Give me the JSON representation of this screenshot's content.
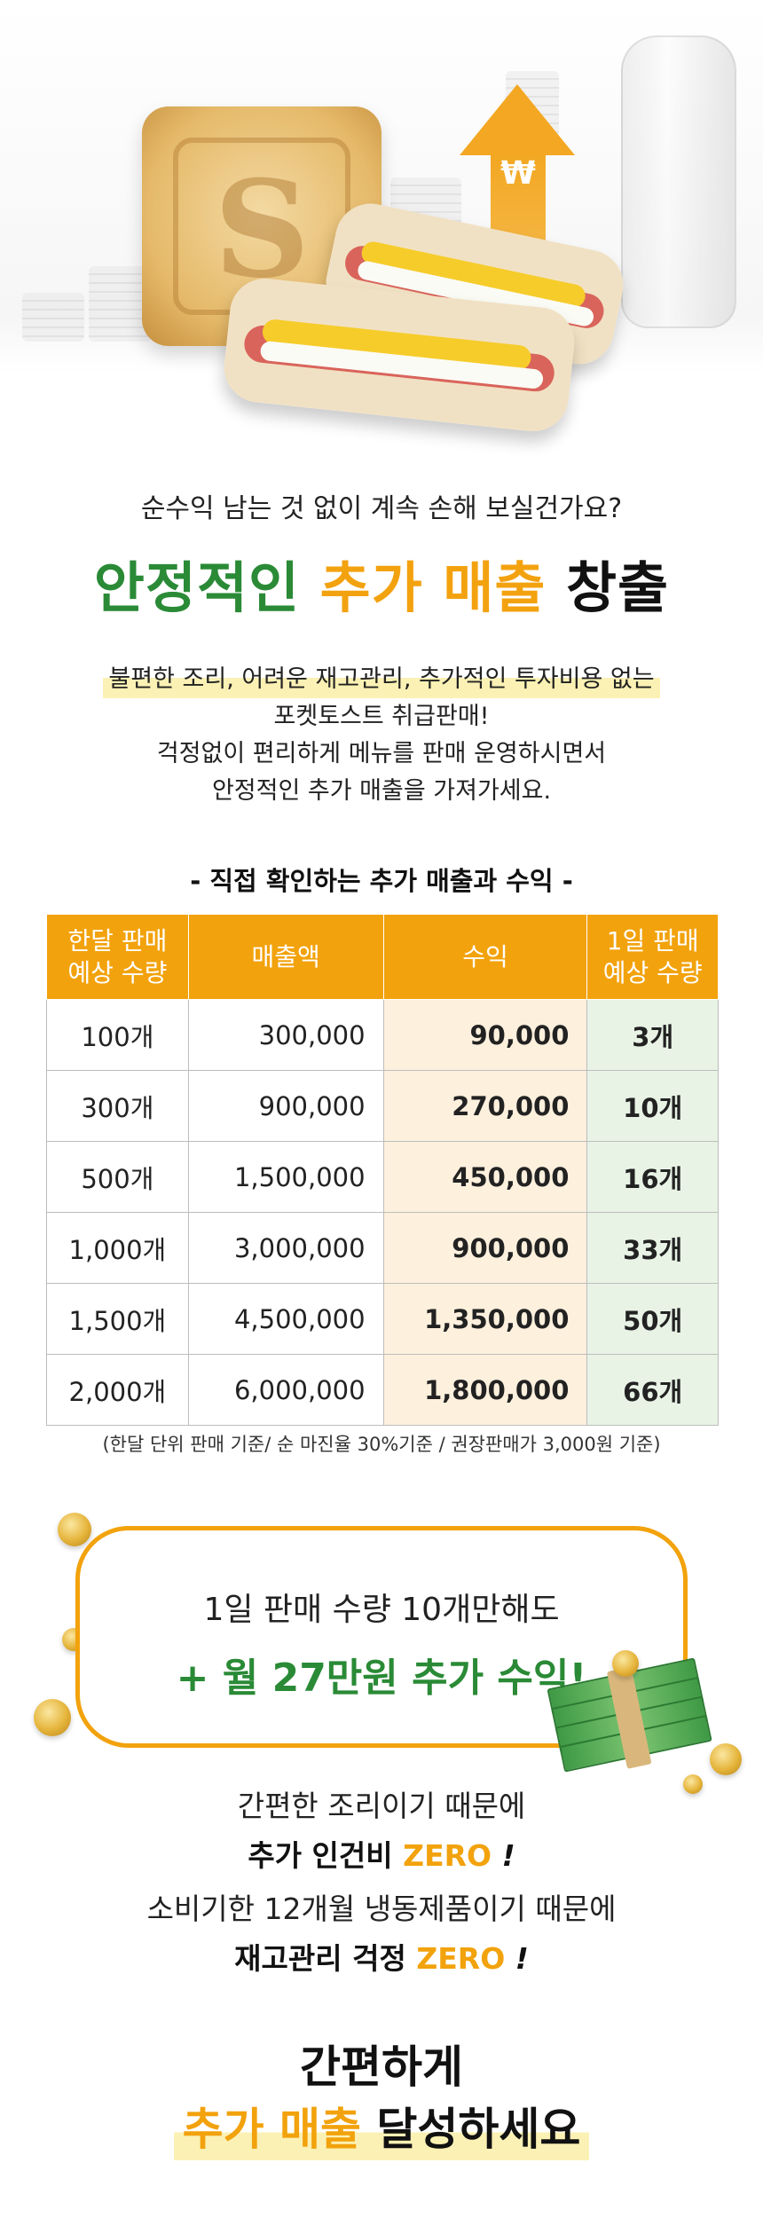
{
  "hero": {
    "won_symbol": "₩",
    "emboss_glyph": "S"
  },
  "headline": {
    "question": "순수익 남는 것 없이 계속 손해 보실건가요?",
    "part1": "안정적인",
    "part2": "추가 매출",
    "part3": "창출"
  },
  "intro": {
    "line1": "불편한 조리, 어려운 재고관리, 추가적인 투자비용 없는",
    "line2": "포켓토스트 취급판매!",
    "line3": "걱정없이 편리하게 메뉴를 판매 운영하시면서",
    "line4": "안정적인 추가 매출을 가져가세요."
  },
  "table": {
    "title": "- 직접 확인하는 추가 매출과 수익 -",
    "headers": [
      "한달 판매\n예상 수량",
      "매출액",
      "수익",
      "1일 판매\n예상 수량"
    ],
    "rows": [
      [
        "100개",
        "300,000",
        "90,000",
        "3개"
      ],
      [
        "300개",
        "900,000",
        "270,000",
        "10개"
      ],
      [
        "500개",
        "1,500,000",
        "450,000",
        "16개"
      ],
      [
        "1,000개",
        "3,000,000",
        "900,000",
        "33개"
      ],
      [
        "1,500개",
        "4,500,000",
        "1,350,000",
        "50개"
      ],
      [
        "2,000개",
        "6,000,000",
        "1,800,000",
        "66개"
      ]
    ],
    "note": "(한달 단위 판매 기준/ 순 마진율 30%기준 / 권장판매가 3,000원 기준)"
  },
  "callout": {
    "line1": "1일 판매 수량 10개만해도",
    "line2": "+ 월 27만원 추가 수익!"
  },
  "benefits": {
    "line1": "간편한 조리이기 때문에",
    "line2_text": "추가 인건비",
    "line2_zero": "ZERO",
    "exclaim": "!",
    "line3": "소비기한 12개월 냉동제품이기 때문에",
    "line4_text": "재고관리 걱정",
    "line4_zero": "ZERO"
  },
  "final": {
    "line1": "간편하게",
    "line2_orange": "추가 매출",
    "line2_black": "달성하세요"
  },
  "colors": {
    "green": "#2a8a36",
    "orange": "#f2a20c",
    "highlight": "#fbf1b4"
  }
}
